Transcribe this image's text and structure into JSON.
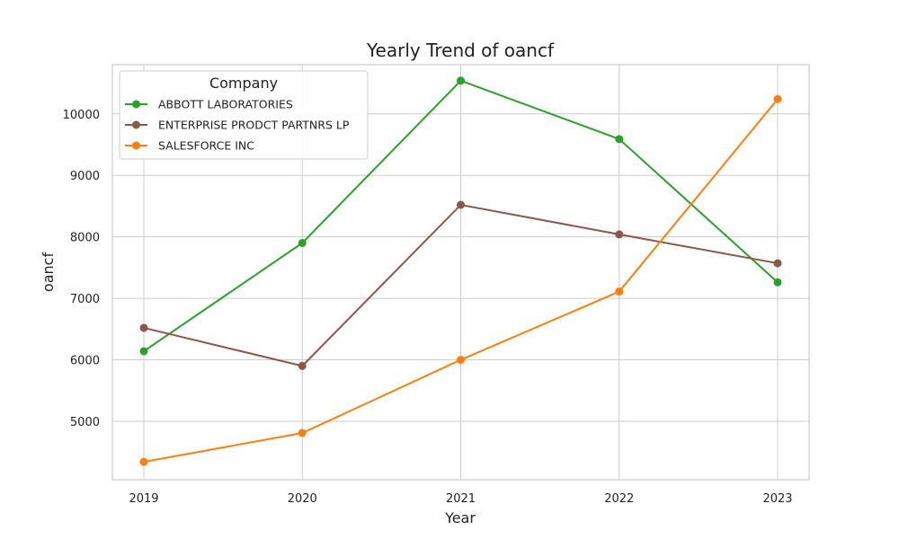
{
  "chart_data": {
    "type": "line",
    "title": "Yearly Trend of oancf",
    "xlabel": "Year",
    "ylabel": "oancf",
    "x": [
      "2019",
      "2020",
      "2021",
      "2022",
      "2023"
    ],
    "yticks": [
      "5000",
      "6000",
      "7000",
      "8000",
      "9000",
      "10000"
    ],
    "ylim": [
      4050,
      10800
    ],
    "grid": true,
    "legend": {
      "title": "Company",
      "placement": "top-left"
    },
    "series": [
      {
        "name": "ABBOTT LABORATORIES",
        "color": "#2ca02c",
        "values": [
          6140,
          7900,
          10540,
          9590,
          7260
        ]
      },
      {
        "name": "ENTERPRISE PRODCT PARTNRS LP",
        "color": "#8c564b",
        "values": [
          6520,
          5900,
          8520,
          8040,
          7570
        ]
      },
      {
        "name": "SALESFORCE INC",
        "color": "#ff7f0e",
        "values": [
          4340,
          4810,
          6000,
          7110,
          10240
        ]
      }
    ]
  }
}
